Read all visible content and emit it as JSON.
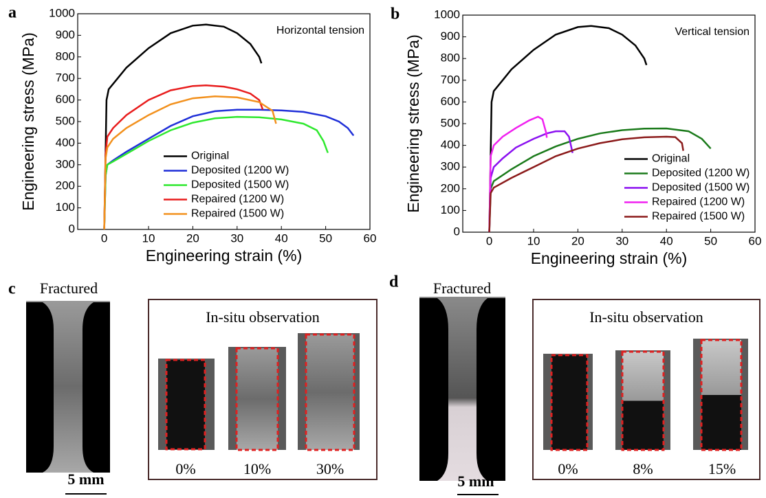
{
  "chart_data": [
    {
      "type": "line",
      "label": "a",
      "annotation": "Horizontal tension",
      "xlabel": "Engineering strain (%)",
      "ylabel": "Engineering stress (MPa)",
      "xlim": [
        -6,
        60
      ],
      "ylim": [
        0,
        1000
      ],
      "xticks": [
        0,
        10,
        20,
        30,
        40,
        50,
        60
      ],
      "yticks": [
        0,
        100,
        200,
        300,
        400,
        500,
        600,
        700,
        800,
        900,
        1000
      ],
      "legend": "lower right",
      "series": [
        {
          "name": "Original",
          "color": "#000000",
          "x": [
            0,
            0.5,
            1,
            3,
            5,
            10,
            15,
            20,
            23,
            27,
            30,
            33,
            35,
            35.5
          ],
          "values": [
            0,
            600,
            650,
            700,
            750,
            840,
            910,
            945,
            950,
            940,
            910,
            860,
            800,
            770
          ]
        },
        {
          "name": "Deposited (1200 W)",
          "color": "#1f2fd8",
          "x": [
            0,
            0.3,
            0.7,
            2,
            5,
            10,
            15,
            20,
            25,
            30,
            35,
            40,
            45,
            50,
            53,
            55,
            56.3
          ],
          "values": [
            0,
            250,
            300,
            320,
            360,
            420,
            480,
            525,
            548,
            555,
            555,
            552,
            545,
            525,
            500,
            470,
            435
          ]
        },
        {
          "name": "Deposited (1500 W)",
          "color": "#2ee82e",
          "x": [
            0,
            0.3,
            0.7,
            2,
            5,
            10,
            15,
            20,
            25,
            30,
            35,
            40,
            45,
            48,
            49.5,
            50.5
          ],
          "values": [
            0,
            250,
            300,
            315,
            350,
            410,
            460,
            495,
            515,
            522,
            520,
            510,
            490,
            460,
            410,
            355
          ]
        },
        {
          "name": "Repaired (1200 W)",
          "color": "#e81c1c",
          "x": [
            0,
            0.3,
            0.7,
            2,
            5,
            10,
            15,
            20,
            23,
            27,
            30,
            33,
            35,
            35.8
          ],
          "values": [
            0,
            350,
            430,
            470,
            530,
            600,
            645,
            665,
            668,
            662,
            650,
            630,
            600,
            555
          ]
        },
        {
          "name": "Repaired (1500 W)",
          "color": "#f2901c",
          "x": [
            0,
            0.3,
            0.7,
            2,
            5,
            10,
            15,
            20,
            25,
            30,
            35,
            38,
            38.8
          ],
          "values": [
            0,
            330,
            380,
            420,
            470,
            530,
            580,
            608,
            617,
            612,
            590,
            550,
            490
          ]
        }
      ]
    },
    {
      "type": "line",
      "label": "b",
      "annotation": "Vertical tension",
      "xlabel": "Engineering strain (%)",
      "ylabel": "Engineering stress (MPa)",
      "xlim": [
        -6,
        60
      ],
      "ylim": [
        0,
        1000
      ],
      "xticks": [
        0,
        10,
        20,
        30,
        40,
        50,
        60
      ],
      "yticks": [
        0,
        100,
        200,
        300,
        400,
        500,
        600,
        700,
        800,
        900,
        1000
      ],
      "legend": "lower right",
      "series": [
        {
          "name": "Original",
          "color": "#000000",
          "x": [
            0,
            0.5,
            1,
            3,
            5,
            10,
            15,
            20,
            23,
            27,
            30,
            33,
            35,
            35.5
          ],
          "values": [
            0,
            600,
            650,
            700,
            750,
            840,
            910,
            945,
            950,
            940,
            910,
            860,
            800,
            770
          ]
        },
        {
          "name": "Deposited (1200 W)",
          "color": "#1a7a1a",
          "x": [
            0,
            0.3,
            1,
            5,
            10,
            15,
            20,
            25,
            30,
            35,
            40,
            45,
            48,
            50
          ],
          "values": [
            0,
            200,
            235,
            290,
            350,
            395,
            430,
            455,
            470,
            477,
            478,
            465,
            430,
            385
          ]
        },
        {
          "name": "Deposited (1500 W)",
          "color": "#8b10f0",
          "x": [
            0,
            0.3,
            1,
            3,
            6,
            10,
            13,
            15,
            17,
            18,
            18.8
          ],
          "values": [
            0,
            250,
            300,
            340,
            390,
            430,
            455,
            465,
            465,
            440,
            365
          ]
        },
        {
          "name": "Repaired (1200 W)",
          "color": "#f020f0",
          "x": [
            0,
            0.3,
            1,
            3,
            6,
            9,
            11,
            12,
            12.8,
            13
          ],
          "values": [
            0,
            350,
            400,
            440,
            480,
            515,
            532,
            520,
            460,
            435
          ]
        },
        {
          "name": "Repaired (1500 W)",
          "color": "#8b1a1a",
          "x": [
            0,
            0.3,
            1,
            5,
            10,
            15,
            20,
            25,
            30,
            35,
            40,
            42,
            43.5,
            43.8
          ],
          "values": [
            0,
            180,
            205,
            250,
            300,
            350,
            385,
            410,
            428,
            437,
            440,
            438,
            410,
            375
          ]
        }
      ]
    }
  ],
  "panels": [
    {
      "label": "c",
      "fractured": "Fractured",
      "scale": "5 mm",
      "observation": "In-situ observation",
      "strains": [
        "0%",
        "10%",
        "30%"
      ]
    },
    {
      "label": "d",
      "fractured": "Fractured",
      "scale": "5 mm",
      "observation": "In-situ observation",
      "strains": [
        "0%",
        "8%",
        "15%"
      ]
    }
  ]
}
